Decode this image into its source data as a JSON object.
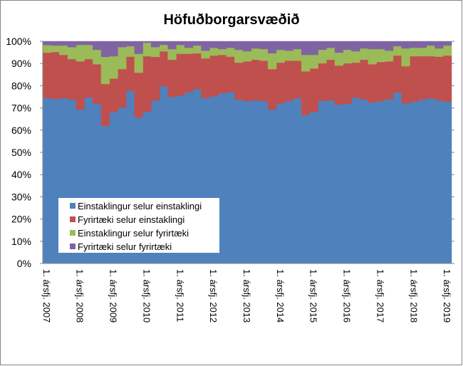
{
  "chart_data": {
    "type": "area",
    "stacked": "percent",
    "title": "Höfuðborgarsvæðið",
    "xlabel": "",
    "ylabel": "",
    "ylim": [
      0,
      100
    ],
    "y_tick_labels": [
      "0%",
      "10%",
      "20%",
      "30%",
      "40%",
      "50%",
      "60%",
      "70%",
      "80%",
      "90%",
      "100%"
    ],
    "x_period": "quarterly, 1. ársfj. 2007 – 1. ársfj. 2019",
    "x_tick_labels": [
      "1. ársfj. 2007",
      "1. ársfj. 2008",
      "1. ársfj. 2009",
      "1. ársfj. 2010",
      "1. ársfj. 2011",
      "1. ársfj. 2012",
      "1. ársfj. 2013",
      "1. ársfj. 2014",
      "1. ársfj. 2015",
      "1. ársfj. 2016",
      "1. ársfj. 2017",
      "1. ársfj. 2018",
      "1. ársfj. 2019"
    ],
    "legend_position": "bottom-left inside plot",
    "series": [
      {
        "name": "Einstaklingur selur einstaklingi",
        "color": "#4f81bd",
        "values": [
          74.5,
          74.0,
          74.4,
          73.8,
          69.3,
          74.7,
          71.9,
          61.9,
          68.1,
          70.2,
          77.7,
          65.7,
          68.3,
          73.4,
          79.8,
          75.0,
          75.6,
          77.2,
          78.5,
          74.5,
          75.3,
          76.6,
          77.2,
          73.8,
          73.2,
          73.4,
          73.1,
          69.3,
          72.1,
          73.1,
          74.4,
          66.8,
          68.3,
          73.2,
          73.4,
          71.5,
          71.9,
          74.7,
          73.8,
          72.5,
          73.1,
          74.0,
          77.0,
          72.1,
          72.8,
          73.8,
          74.4,
          73.4,
          72.8
        ]
      },
      {
        "name": "Fyrirtæki selur einstaklingi",
        "color": "#c0504d",
        "values": [
          20.4,
          21.2,
          19.5,
          18.2,
          21.7,
          17.3,
          17.8,
          18.9,
          15.2,
          17.3,
          15.4,
          20.2,
          25.0,
          19.6,
          15.7,
          16.7,
          18.8,
          17.2,
          16.1,
          17.8,
          18.3,
          17.3,
          15.9,
          16.6,
          17.8,
          18.3,
          18.2,
          18.2,
          18.3,
          18.2,
          16.9,
          19.7,
          19.5,
          16.9,
          18.3,
          17.6,
          18.2,
          15.7,
          17.9,
          17.2,
          17.6,
          17.0,
          16.6,
          16.7,
          20.5,
          19.5,
          18.9,
          19.7,
          20.8
        ]
      },
      {
        "name": "Einstaklingur selur fyrirtæki",
        "color": "#9bbb59",
        "values": [
          3.4,
          2.9,
          4.2,
          5.4,
          7.4,
          6.4,
          6.5,
          12.2,
          10.0,
          9.9,
          4.7,
          8.5,
          6.1,
          4.4,
          2.9,
          4.8,
          4.0,
          2.7,
          3.5,
          3.5,
          3.5,
          2.6,
          4.0,
          5.8,
          4.5,
          5.1,
          5.2,
          7.1,
          5.8,
          4.5,
          5.2,
          7.4,
          6.1,
          6.1,
          5.4,
          5.8,
          6.1,
          5.1,
          5.1,
          6.8,
          5.8,
          4.8,
          4.2,
          8.0,
          3.8,
          3.8,
          4.8,
          3.7,
          4.5
        ]
      },
      {
        "name": "Fyrirtæki selur fyrirtæki",
        "color": "#8064a2",
        "values": [
          1.7,
          1.9,
          1.9,
          2.6,
          1.6,
          1.6,
          3.8,
          7.0,
          6.7,
          2.6,
          2.2,
          5.6,
          0.6,
          2.6,
          1.6,
          3.5,
          1.6,
          2.9,
          1.9,
          4.2,
          2.9,
          3.5,
          2.9,
          3.8,
          4.5,
          3.2,
          3.5,
          5.4,
          3.8,
          4.2,
          3.5,
          6.1,
          6.1,
          3.8,
          2.9,
          5.1,
          3.8,
          4.5,
          3.2,
          3.5,
          3.5,
          4.2,
          2.2,
          3.2,
          2.9,
          2.9,
          1.9,
          3.2,
          1.9
        ]
      }
    ]
  }
}
